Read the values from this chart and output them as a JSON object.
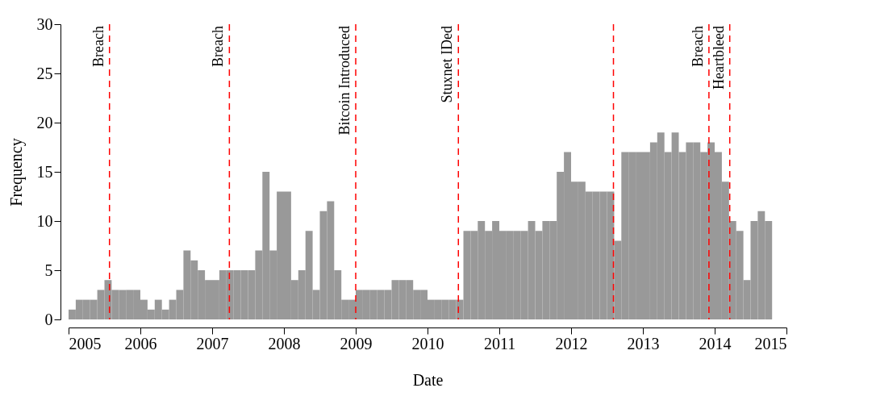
{
  "chart_data": {
    "type": "histogram",
    "xlabel": "Date",
    "ylabel": "Frequency",
    "color": "#999999",
    "bins": [
      2005.0,
      2005.1,
      2005.2,
      2005.3,
      2005.4,
      2005.5,
      2005.6,
      2005.7,
      2005.8,
      2005.9,
      2006.0,
      2006.1,
      2006.2,
      2006.3,
      2006.4,
      2006.5,
      2006.6,
      2006.7,
      2006.8,
      2006.9,
      2007.0,
      2007.1,
      2007.2,
      2007.3,
      2007.4,
      2007.5,
      2007.6,
      2007.7,
      2007.8,
      2007.9,
      2008.0,
      2008.1,
      2008.2,
      2008.3,
      2008.4,
      2008.5,
      2008.6,
      2008.7,
      2008.8,
      2008.9,
      2009.0,
      2009.1,
      2009.2,
      2009.3,
      2009.4,
      2009.5,
      2009.6,
      2009.7,
      2009.8,
      2009.9,
      2010.0,
      2010.1,
      2010.2,
      2010.3,
      2010.4,
      2010.5,
      2010.6,
      2010.7,
      2010.8,
      2010.9,
      2011.0,
      2011.1,
      2011.2,
      2011.3,
      2011.4,
      2011.5,
      2011.6,
      2011.7,
      2011.8,
      2011.9,
      2012.0,
      2012.1,
      2012.2,
      2012.3,
      2012.4,
      2012.5,
      2012.6,
      2012.7,
      2012.8,
      2012.9,
      2013.0,
      2013.1,
      2013.2,
      2013.3,
      2013.4,
      2013.5,
      2013.6,
      2013.7,
      2013.8,
      2013.9,
      2014.0,
      2014.1,
      2014.2,
      2014.3,
      2014.4,
      2014.5,
      2014.6,
      2014.7,
      2014.8
    ],
    "values": [
      1,
      2,
      2,
      2,
      3,
      4,
      3,
      3,
      3,
      3,
      2,
      1,
      2,
      1,
      2,
      3,
      7,
      6,
      5,
      4,
      4,
      5,
      5,
      5,
      5,
      5,
      7,
      15,
      7,
      13,
      13,
      4,
      5,
      9,
      3,
      11,
      12,
      5,
      2,
      2,
      3,
      3,
      3,
      3,
      3,
      4,
      4,
      4,
      3,
      3,
      2,
      2,
      2,
      2,
      2,
      9,
      9,
      10,
      9,
      10,
      9,
      9,
      9,
      9,
      10,
      9,
      10,
      10,
      15,
      17,
      14,
      14,
      13,
      13,
      13,
      13,
      8,
      17,
      17,
      17,
      17,
      18,
      19,
      17,
      19,
      17,
      18,
      18,
      17,
      18,
      17,
      14,
      10,
      9,
      4,
      10,
      11,
      10
    ],
    "xlim": [
      2005,
      2015
    ],
    "xticks": [
      2005,
      2006,
      2007,
      2008,
      2009,
      2010,
      2011,
      2012,
      2013,
      2014,
      2015
    ],
    "ylim": [
      0,
      30
    ],
    "yticks": [
      0,
      5,
      10,
      15,
      20,
      25,
      30
    ],
    "grid": false,
    "ref_lines": [
      {
        "axis": "x",
        "value": 2005.57,
        "label": "Breach",
        "color": "#ff0000",
        "line_style": "dashed"
      },
      {
        "axis": "x",
        "value": 2007.24,
        "label": "Breach",
        "color": "#ff0000",
        "line_style": "dashed"
      },
      {
        "axis": "x",
        "value": 2009.0,
        "label": "Bitcoin Introduced",
        "color": "#ff0000",
        "line_style": "dashed"
      },
      {
        "axis": "x",
        "value": 2010.43,
        "label": "Stuxnet IDed",
        "color": "#ff0000",
        "line_style": "dashed"
      },
      {
        "axis": "x",
        "value": 2012.59,
        "label": null,
        "color": "#ff0000",
        "line_style": "dashed"
      },
      {
        "axis": "x",
        "value": 2013.92,
        "label": "Breach",
        "color": "#ff0000",
        "line_style": "dashed"
      },
      {
        "axis": "x",
        "value": 2014.21,
        "label": "Heartbleed",
        "color": "#ff0000",
        "line_style": "dashed"
      }
    ]
  }
}
